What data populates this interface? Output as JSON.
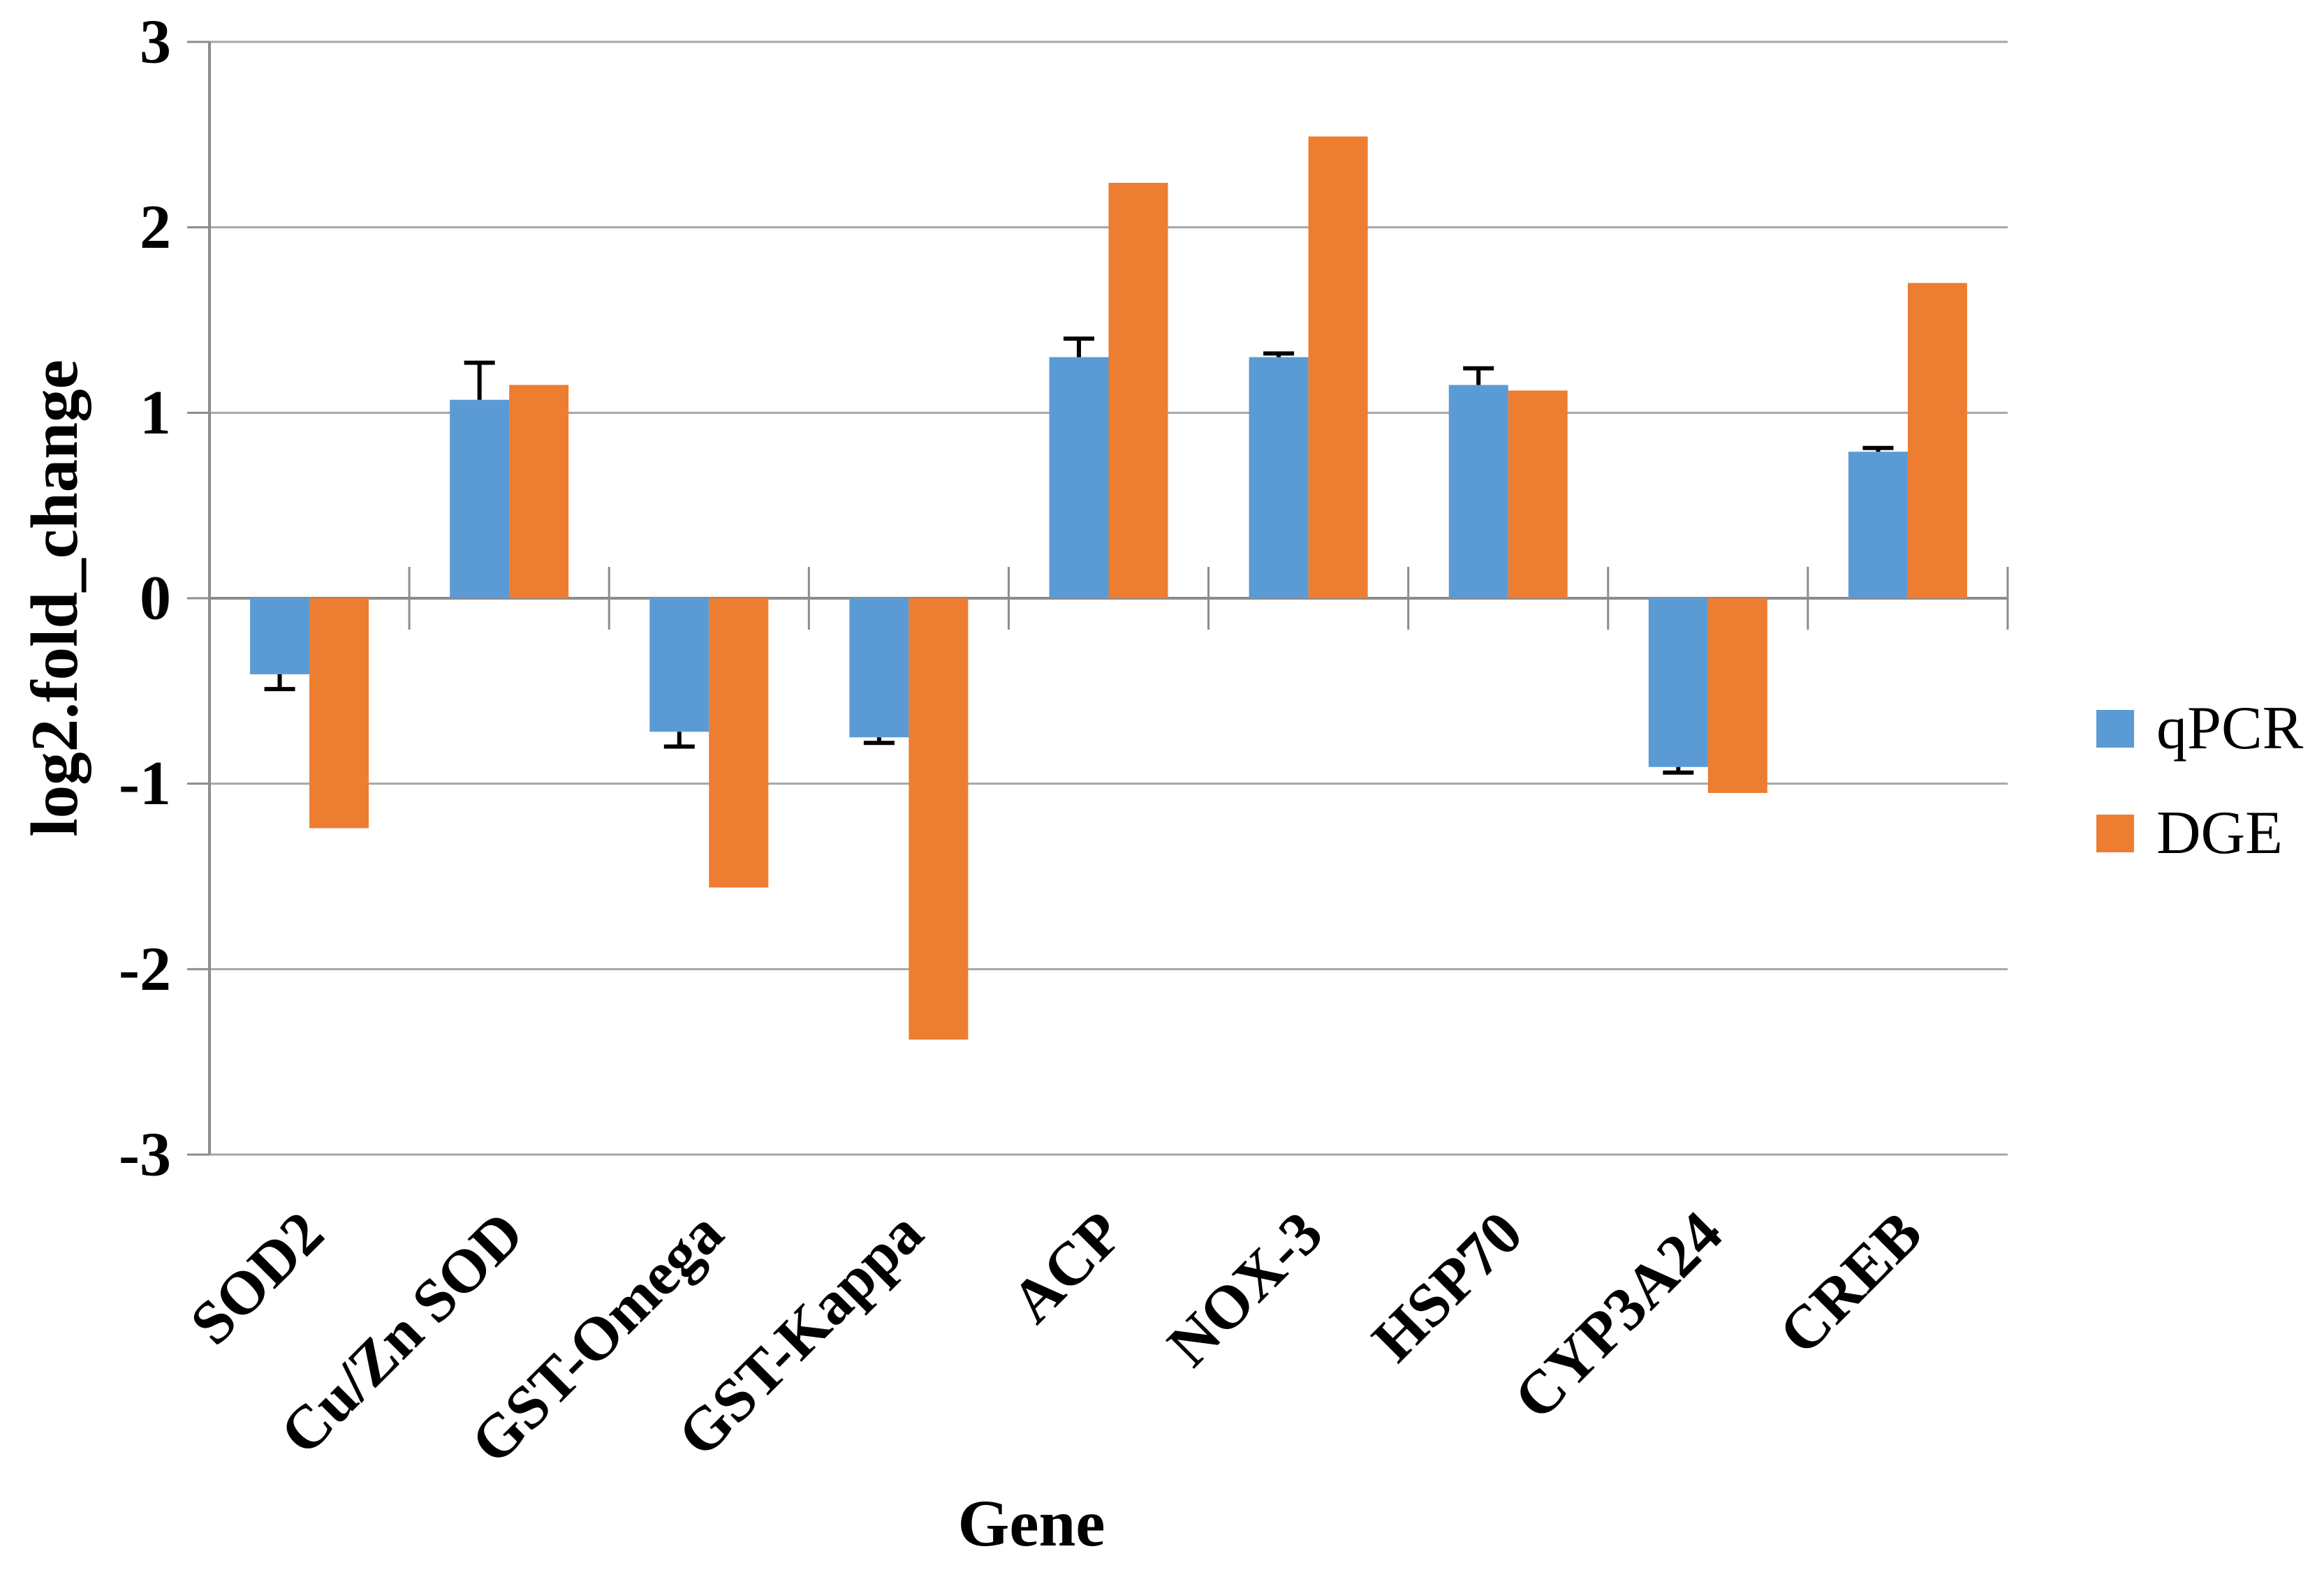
{
  "figure_title": "",
  "chart_data": {
    "type": "bar",
    "title": "",
    "xlabel": "Gene",
    "ylabel": "log2.fold_change",
    "categories": [
      "SOD2",
      "Cu/Zn SOD",
      "GST-Omega",
      "GST-Kappa",
      "ACP",
      "NOX-3",
      "HSP70",
      "CYP3A24",
      "CREB"
    ],
    "series": [
      {
        "name": "qPCR",
        "color": "#5B9BD5",
        "values": [
          -0.41,
          1.07,
          -0.72,
          -0.75,
          1.3,
          1.3,
          1.15,
          -0.91,
          0.79
        ],
        "errors": [
          0.08,
          0.2,
          0.08,
          0.03,
          0.1,
          0.02,
          0.09,
          0.03,
          0.02
        ]
      },
      {
        "name": "DGE",
        "color": "#ED7D31",
        "values": [
          -1.24,
          1.15,
          -1.56,
          -2.38,
          2.24,
          2.49,
          1.12,
          -1.05,
          1.7
        ]
      }
    ],
    "ylim": [
      -3,
      3
    ],
    "yticks": [
      3,
      2,
      1,
      0,
      -1,
      -2,
      -3
    ],
    "grid": true,
    "legend_position": "right",
    "error_bar_color": "#000000",
    "gridline_color": "#A6A6A6",
    "axis_color": "#8C8C8C"
  }
}
